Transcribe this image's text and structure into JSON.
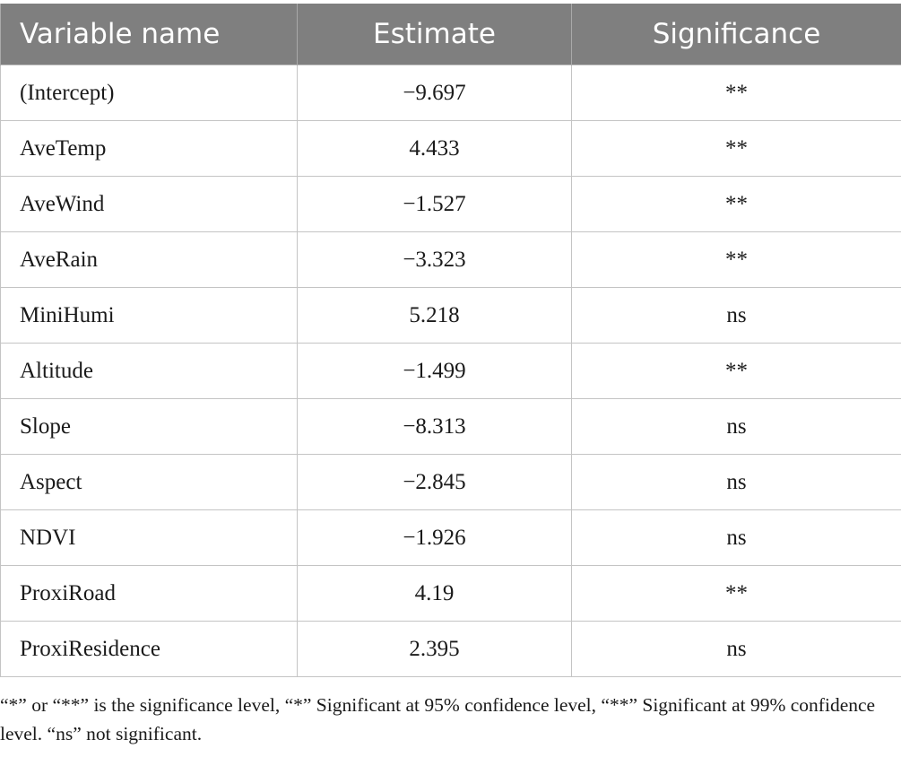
{
  "table": {
    "headers": [
      "Variable name",
      "Estimate",
      "Significance"
    ],
    "rows": [
      {
        "variable": "(Intercept)",
        "estimate": "−9.697",
        "significance": "**"
      },
      {
        "variable": "AveTemp",
        "estimate": "4.433",
        "significance": "**"
      },
      {
        "variable": "AveWind",
        "estimate": "−1.527",
        "significance": "**"
      },
      {
        "variable": "AveRain",
        "estimate": "−3.323",
        "significance": "**"
      },
      {
        "variable": "MiniHumi",
        "estimate": "5.218",
        "significance": "ns"
      },
      {
        "variable": "Altitude",
        "estimate": "−1.499",
        "significance": "**"
      },
      {
        "variable": "Slope",
        "estimate": "−8.313",
        "significance": "ns"
      },
      {
        "variable": "Aspect",
        "estimate": "−2.845",
        "significance": "ns"
      },
      {
        "variable": "NDVI",
        "estimate": "−1.926",
        "significance": "ns"
      },
      {
        "variable": "ProxiRoad",
        "estimate": "4.19",
        "significance": "**"
      },
      {
        "variable": "ProxiResidence",
        "estimate": "2.395",
        "significance": "ns"
      }
    ]
  },
  "footnote": "“*” or “**” is the significance level, “*” Significant at 95% confidence level, “**” Significant at 99% confidence level. “ns” not significant.",
  "colors": {
    "header_background": "#7f7f7f",
    "header_text": "#ffffff",
    "grid_line": "#c4c4c4"
  }
}
